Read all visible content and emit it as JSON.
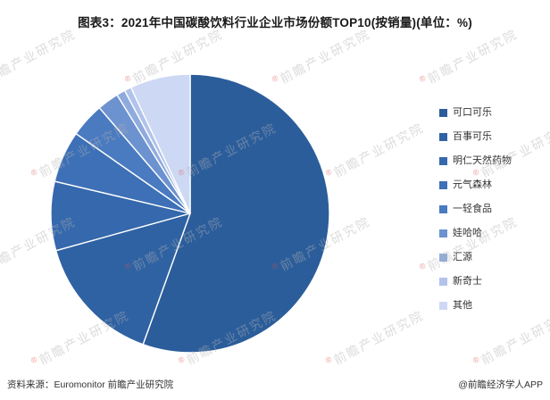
{
  "title": "图表3：2021年中国碳酸饮料行业企业市场份额TOP10(按销量)(单位：%)",
  "source": "资料来源：Euromonitor 前瞻产业研究院",
  "credit": "@前瞻经济学人APP",
  "watermark": {
    "registered": "®",
    "text": "前瞻产业研究院"
  },
  "colors": {
    "background": "#ffffff",
    "title_text": "#1a1a1a",
    "legend_text": "#333333",
    "footer_text": "#333333",
    "slice_border": "#ffffff",
    "watermark_gray": "#b2b2b2",
    "watermark_red": "#d9534f"
  },
  "chart_data": {
    "type": "pie",
    "title": "2021年中国碳酸饮料行业企业市场份额TOP10(按销量)(单位：%)",
    "legend_position": "right",
    "start_angle_deg": 0,
    "direction": "clockwise",
    "labels": [
      "可口可乐",
      "百事可乐",
      "明仁天然药物",
      "元气森林",
      "一轻食品",
      "娃哈哈",
      "汇源",
      "新奇士",
      "其他"
    ],
    "values": [
      55.5,
      15.2,
      8.0,
      6.0,
      4.0,
      2.5,
      1.0,
      0.8,
      7.0
    ],
    "colors": [
      "#2B5D9B",
      "#2F62A3",
      "#3568AC",
      "#3D70B6",
      "#4A7AC0",
      "#6C92CF",
      "#8FABDE",
      "#B1C3EA",
      "#CDD8F4"
    ]
  }
}
